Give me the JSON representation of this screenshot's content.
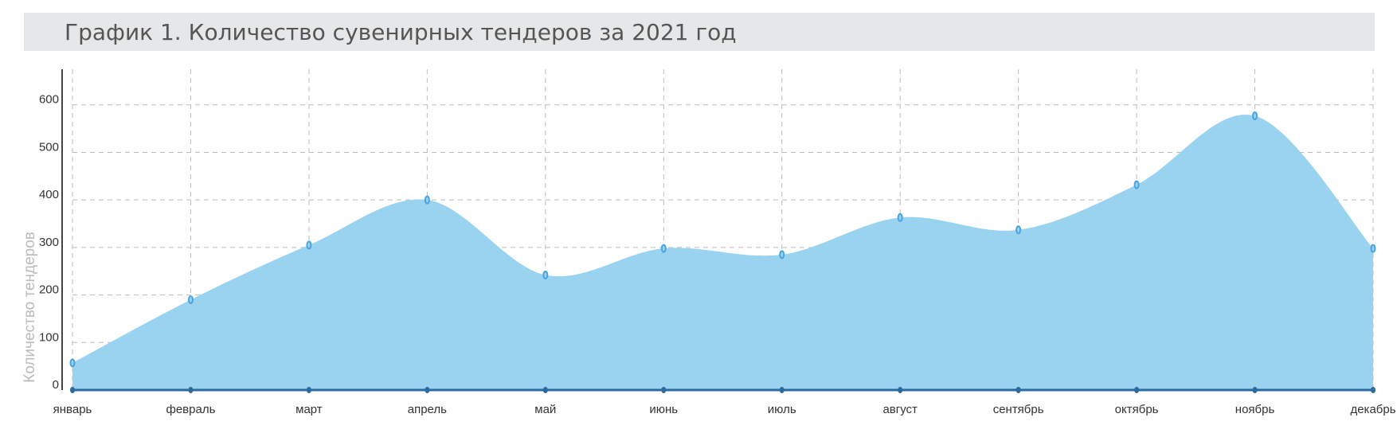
{
  "chart_data": {
    "type": "area",
    "title": "График 1. Количество сувенирных тендеров за 2021 год",
    "y_label": "Количество тендеров",
    "categories": [
      "январь",
      "февраль",
      "март",
      "апрель",
      "май",
      "июнь",
      "июль",
      "август",
      "сентябрь",
      "октябрь",
      "ноябрь",
      "декабрь"
    ],
    "values": [
      57,
      190,
      305,
      400,
      242,
      298,
      285,
      363,
      337,
      432,
      577,
      298
    ],
    "color": "#9ad3f0",
    "marker_color": "#4aa3df",
    "ylim": [
      0,
      675
    ],
    "yticks": [
      0,
      100,
      200,
      300,
      400,
      500,
      600
    ],
    "grid": true
  }
}
